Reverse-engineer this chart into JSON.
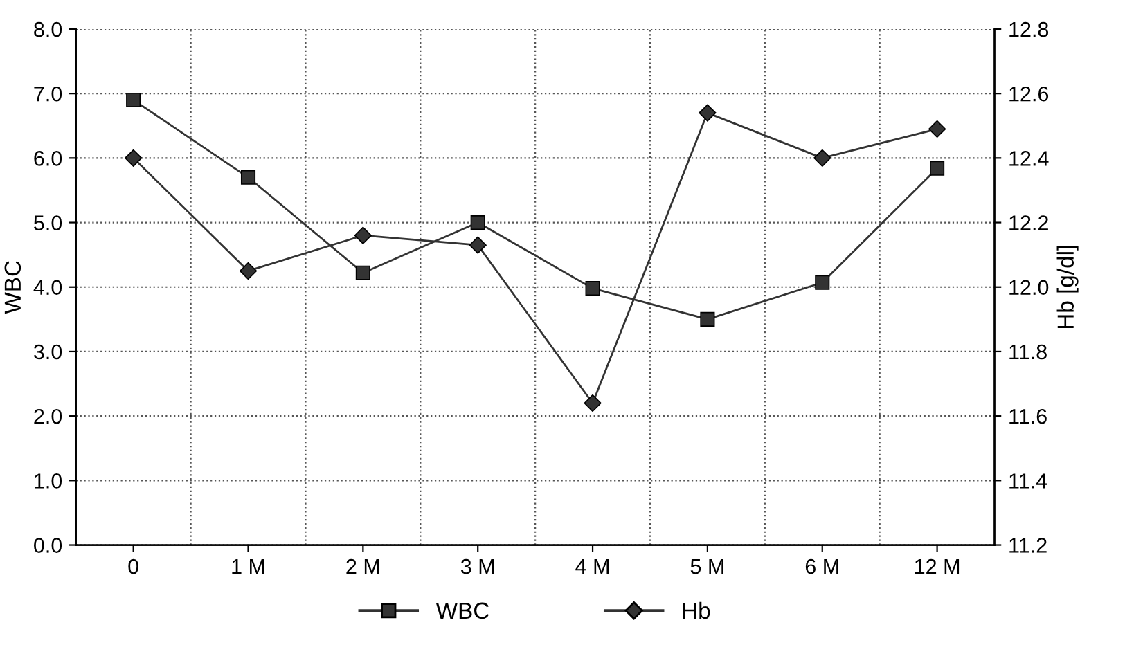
{
  "chart_data": {
    "type": "line",
    "ylabel": "WBC",
    "y2label": "Hb [g/dl]",
    "categories": [
      "0",
      "1 M",
      "2 M",
      "3 M",
      "4 M",
      "5 M",
      "6 M",
      "12 M"
    ],
    "series": [
      {
        "name": "WBC",
        "color": "#333333",
        "marker": "square",
        "values": [
          6.9,
          5.7,
          4.22,
          5.0,
          3.98,
          3.5,
          4.07,
          5.84
        ]
      },
      {
        "name": "Hb",
        "color": "#333333",
        "marker": "diamond",
        "axis": "y2",
        "values": [
          12.4,
          12.05,
          12.16,
          12.13,
          11.64,
          12.54,
          12.4,
          12.49
        ]
      }
    ],
    "ylim": [
      0,
      8
    ],
    "yticks": [
      {
        "value": 0,
        "label": "0.0"
      },
      {
        "value": 1,
        "label": "1.0"
      },
      {
        "value": 2,
        "label": "2.0"
      },
      {
        "value": 3,
        "label": "3.0"
      },
      {
        "value": 4,
        "label": "4.0"
      },
      {
        "value": 5,
        "label": "5.0"
      },
      {
        "value": 6,
        "label": "6.0"
      },
      {
        "value": 7,
        "label": "7.0"
      },
      {
        "value": 8,
        "label": "8.0"
      }
    ],
    "y2lim": [
      11.2,
      12.8
    ],
    "y2ticks": [
      11.2,
      11.4,
      11.6,
      11.8,
      {
        "value": 12,
        "label": "12.0"
      },
      12.2,
      12.4,
      12.6,
      12.8
    ],
    "grid": true,
    "legend": "bottom",
    "line_style": "solid"
  }
}
